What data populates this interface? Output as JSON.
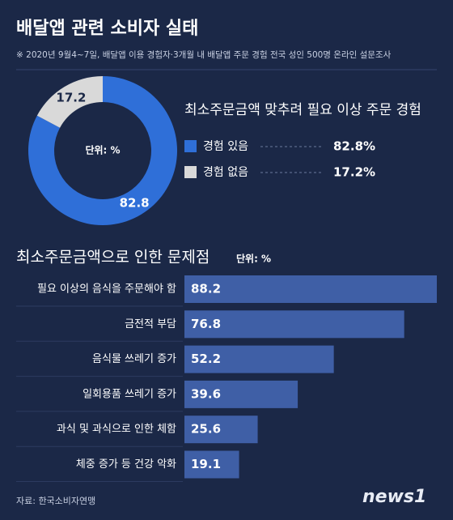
{
  "header": {
    "title": "배달앱 관련 소비자 실태",
    "subtitle": "※ 2020년 9월4~7일, 배달앱 이용 경험자·3개월 내 배달앱 주문 경험 전국 성인 500명 온라인 설문조사"
  },
  "chart_data": [
    {
      "type": "pie",
      "title": "최소주문금액 맞추려 필요 이상 주문 경험",
      "unit": "단위: %",
      "categories": [
        "경험 있음",
        "경험 없음"
      ],
      "values": [
        82.8,
        17.2
      ],
      "value_labels": [
        "82.8%",
        "17.2%"
      ],
      "colors": [
        "#2f6fd8",
        "#d9d9d9"
      ]
    },
    {
      "type": "bar",
      "orientation": "horizontal",
      "title": "최소주문금액으로 인한 문제점",
      "unit": "단위: %",
      "categories": [
        "필요 이상의 음식을 주문해야 함",
        "금전적 부담",
        "음식물 쓰레기 증가",
        "일회용품 쓰레기 증가",
        "과식 및 과식으로 인한 체함",
        "체중 증가 등 건강 악화"
      ],
      "values": [
        88.2,
        76.8,
        52.2,
        39.6,
        25.6,
        19.1
      ],
      "color": "#3f5fa6"
    }
  ],
  "footer": {
    "source": "자료: 한국소비자연맹",
    "logo": "news1"
  }
}
